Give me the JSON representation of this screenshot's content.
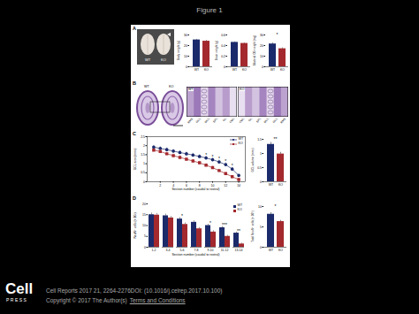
{
  "title": "Figure 1",
  "panels": {
    "A": {
      "label": "A",
      "photo_labels": [
        "WT",
        "KO"
      ]
    },
    "B": {
      "label": "B",
      "section_labels": [
        "WT",
        "KO"
      ],
      "zoom_labels": [
        "WT",
        "KO"
      ],
      "wt_layers": [
        "RMS",
        "GCL",
        "MCL",
        "EPL",
        "GL",
        "ONL"
      ],
      "ko_layers": [
        "ONL",
        "GL",
        "EPL",
        "MCL",
        "GCL",
        "RMS"
      ]
    },
    "C": {
      "label": "C"
    },
    "D": {
      "label": "D"
    }
  },
  "chart_data": [
    {
      "type": "bar",
      "y_label": "Body weight (g)",
      "categories": [
        "WT",
        "KO"
      ],
      "values": [
        25.3,
        24.1
      ],
      "errors": [
        0.6,
        0.7
      ],
      "colors": [
        "#1b2a6b",
        "#a3292e"
      ],
      "ylim": [
        0,
        30
      ],
      "yticks": [
        0,
        10,
        20,
        30
      ],
      "annotations": []
    },
    {
      "type": "bar",
      "y_label": "Brain weight (g)",
      "categories": [
        "WT",
        "KO"
      ],
      "values": [
        0.46,
        0.44
      ],
      "errors": [
        0.01,
        0.01
      ],
      "colors": [
        "#1b2a6b",
        "#a3292e"
      ],
      "ylim": [
        0,
        0.6
      ],
      "yticks": [
        0,
        0.2,
        0.4,
        0.6
      ],
      "annotations": []
    },
    {
      "type": "bar",
      "y_label": "Bilateral OB weight (mg)",
      "categories": [
        "WT",
        "KO"
      ],
      "values": [
        21.5,
        17.0
      ],
      "errors": [
        0.9,
        0.8
      ],
      "colors": [
        "#1b2a6b",
        "#a3292e"
      ],
      "ylim": [
        0,
        30
      ],
      "yticks": [
        0,
        10,
        20,
        30
      ],
      "annotations": [
        {
          "text": "*"
        }
      ]
    },
    {
      "type": "line",
      "x_label": "Section number (caudal to rostral)",
      "y_label": "GCL area (mm²)",
      "x": [
        1,
        2,
        3,
        4,
        5,
        6,
        7,
        8,
        9,
        10,
        11,
        12,
        13,
        14
      ],
      "series": [
        {
          "name": "WT",
          "color": "#1b2a6b",
          "marker": "circle",
          "values": [
            1.92,
            1.85,
            1.78,
            1.7,
            1.62,
            1.55,
            1.48,
            1.4,
            1.32,
            1.22,
            1.1,
            0.95,
            0.7,
            0.35
          ],
          "errors": [
            0.1,
            0.1,
            0.1,
            0.1,
            0.1,
            0.1,
            0.1,
            0.1,
            0.1,
            0.1,
            0.1,
            0.1,
            0.1,
            0.08
          ]
        },
        {
          "name": "KO",
          "color": "#a3292e",
          "marker": "square",
          "values": [
            1.75,
            1.68,
            1.55,
            1.45,
            1.35,
            1.25,
            1.15,
            1.05,
            0.92,
            0.78,
            0.62,
            0.45,
            0.28,
            0.12
          ],
          "errors": [
            0.09,
            0.09,
            0.09,
            0.09,
            0.09,
            0.09,
            0.09,
            0.09,
            0.09,
            0.08,
            0.08,
            0.07,
            0.06,
            0.05
          ]
        }
      ],
      "xlim": [
        0,
        15
      ],
      "xticks": [
        2,
        4,
        6,
        8,
        10,
        12,
        14
      ],
      "ylim": [
        0,
        2.5
      ],
      "yticks": [
        0,
        0.5,
        1,
        1.5,
        2,
        2.5
      ],
      "legend": "top-right",
      "annotations": [
        {
          "x": 9,
          "text": "*"
        },
        {
          "x": 10,
          "text": "*"
        },
        {
          "x": 11,
          "text": "*"
        },
        {
          "x": 12,
          "text": "*"
        },
        {
          "x": 13,
          "text": "*"
        }
      ]
    },
    {
      "type": "bar",
      "y_label": "GCL volume (mm³)",
      "categories": [
        "WT",
        "KO"
      ],
      "values": [
        1.32,
        0.98
      ],
      "errors": [
        0.07,
        0.06
      ],
      "colors": [
        "#1b2a6b",
        "#a3292e"
      ],
      "ylim": [
        0,
        1.5
      ],
      "yticks": [
        0,
        0.5,
        1,
        1.5
      ],
      "annotations": [
        {
          "text": "**"
        }
      ]
    },
    {
      "type": "bar",
      "x_label": "Section number (caudal to rostral)",
      "y_label": "NeuN⁺ cells (× 10³)",
      "categories": [
        "1-2",
        "3-4",
        "5-6",
        "7-8",
        "9-10",
        "11-12",
        "13-14"
      ],
      "series": [
        {
          "name": "WT",
          "color": "#1b2a6b",
          "values": [
            15,
            14.5,
            13,
            11.5,
            10,
            9,
            6.5
          ],
          "errors": [
            0.8,
            0.8,
            0.7,
            0.7,
            0.6,
            0.6,
            0.5
          ]
        },
        {
          "name": "KO",
          "color": "#a3292e",
          "values": [
            14.8,
            13.5,
            10.5,
            8.5,
            7,
            5,
            1.5
          ],
          "errors": [
            0.8,
            0.7,
            0.7,
            0.6,
            0.6,
            0.5,
            0.4
          ]
        }
      ],
      "ylim": [
        0,
        20
      ],
      "yticks": [
        0,
        5,
        10,
        15,
        20
      ],
      "legend": "top-right",
      "annotations": [
        {
          "category": "5-6",
          "text": "*"
        },
        {
          "category": "9-10",
          "text": "*"
        },
        {
          "category": "11-12",
          "text": "***"
        },
        {
          "category": "13-14",
          "text": "**"
        }
      ]
    },
    {
      "type": "bar",
      "y_label": "Total NeuN⁺ cells (× 10⁵)",
      "categories": [
        "WT",
        "KO"
      ],
      "values": [
        8.1,
        6.3
      ],
      "errors": [
        0.4,
        0.3
      ],
      "colors": [
        "#1b2a6b",
        "#a3292e"
      ],
      "ylim": [
        0,
        10
      ],
      "yticks": [
        0,
        5,
        10
      ],
      "annotations": [
        {
          "text": "*"
        }
      ]
    }
  ],
  "footer": {
    "logo": "Cell",
    "logo_sub": "PRESS",
    "citation": "Cell Reports 2017 21, 2264-2276DOI: (10.1016/j.celrep.2017.10.100)",
    "copyright": "Copyright © 2017 The Author(s)",
    "link": "Terms and Conditions"
  }
}
